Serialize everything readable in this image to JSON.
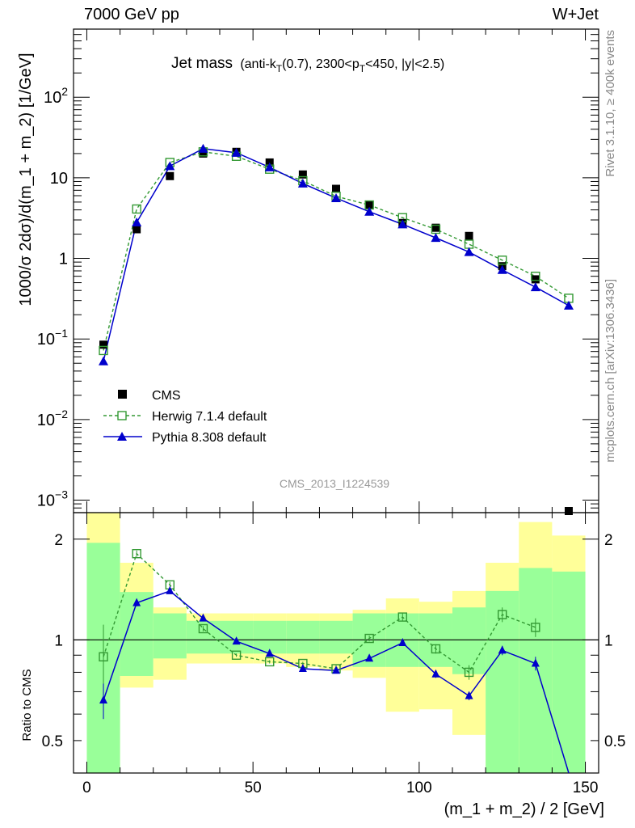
{
  "header": {
    "left": "7000 GeV pp",
    "right": "W+Jet"
  },
  "side_labels": {
    "rivet": "Rivet 3.1.10, ≥ 400k events",
    "mcplots": "mcplots.cern.ch [arXiv:1306.3436]"
  },
  "plot_title": {
    "main": "Jet mass",
    "cuts_a": "(anti-k",
    "cuts_a_sub": "T",
    "cuts_b": "(0.7), 2300<p",
    "cuts_b_sub": "T",
    "cuts_c": "<450, |y|<2.5)"
  },
  "watermark": "CMS_2013_I1224539",
  "top_panel": {
    "ylabel": "1000/σ 2dσ)/d(m_1 + m_2) [1/GeV]",
    "y_scale": "log",
    "ylim": [
      0.0007,
      700
    ],
    "y_ticks": [
      {
        "value": 100,
        "base": "10",
        "exp": "2"
      },
      {
        "value": 10,
        "base": "10",
        "exp": ""
      },
      {
        "value": 1,
        "base": "1",
        "exp": ""
      },
      {
        "value": 0.1,
        "base": "10",
        "exp": "−1"
      },
      {
        "value": 0.01,
        "base": "10",
        "exp": "−2"
      },
      {
        "value": 0.001,
        "base": "10",
        "exp": "−3"
      }
    ]
  },
  "bottom_panel": {
    "ylabel": "Ratio to CMS",
    "y_scale": "log",
    "ylim": [
      0.4,
      2.4
    ],
    "y_ticks": [
      {
        "value": 2,
        "label": "2"
      },
      {
        "value": 1,
        "label": "1"
      },
      {
        "value": 0.5,
        "label": "0.5"
      }
    ],
    "reference_line": 1
  },
  "x_axis": {
    "xlabel": "(m_1 + m_2) / 2 [GeV]",
    "xlim": [
      -4,
      154
    ],
    "ticks": [
      0,
      50,
      100,
      150
    ]
  },
  "legend": [
    {
      "label": "CMS",
      "marker": "square-filled",
      "color": "#000000"
    },
    {
      "label": "Herwig 7.1.4 default",
      "marker": "square-open",
      "color": "#339933"
    },
    {
      "label": "Pythia 8.308 default",
      "marker": "triangle",
      "color": "#0000cc"
    }
  ],
  "colors": {
    "band_inner": "#99ff99",
    "band_outer": "#ffff99",
    "cms": "#000000",
    "herwig": "#339933",
    "pythia": "#0000cc"
  },
  "chart_data": {
    "type": "scatter",
    "bins": [
      [
        0,
        10
      ],
      [
        10,
        20
      ],
      [
        20,
        30
      ],
      [
        30,
        40
      ],
      [
        40,
        50
      ],
      [
        50,
        60
      ],
      [
        60,
        70
      ],
      [
        70,
        80
      ],
      [
        80,
        90
      ],
      [
        90,
        100
      ],
      [
        100,
        110
      ],
      [
        110,
        120
      ],
      [
        120,
        130
      ],
      [
        130,
        140
      ],
      [
        140,
        150
      ]
    ],
    "x": [
      5,
      15,
      25,
      35,
      45,
      55,
      65,
      75,
      85,
      95,
      105,
      115,
      125,
      135,
      145
    ],
    "series": [
      {
        "name": "CMS",
        "values": [
          0.085,
          2.3,
          10.5,
          20,
          21,
          15.5,
          11,
          7.3,
          4.6,
          2.75,
          2.4,
          1.9,
          0.8,
          0.55,
          0.00035
        ]
      },
      {
        "name": "Herwig 7.1.4 default",
        "values": [
          0.072,
          4.1,
          15.5,
          21,
          18.5,
          12.8,
          9.2,
          5.9,
          4.6,
          3.2,
          2.3,
          1.5,
          0.95,
          0.6,
          0.32
        ]
      },
      {
        "name": "Pythia 8.308 default",
        "values": [
          0.053,
          2.8,
          14,
          23,
          20.5,
          13.5,
          8.5,
          5.6,
          3.8,
          2.65,
          1.8,
          1.2,
          0.72,
          0.44,
          0.26
        ]
      }
    ],
    "ratio": {
      "herwig": [
        0.89,
        1.81,
        1.46,
        1.08,
        0.9,
        0.86,
        0.85,
        0.82,
        1.01,
        1.17,
        0.94,
        0.8,
        1.19,
        1.09,
        null
      ],
      "herwig_err": [
        0.22,
        0.04,
        0.03,
        0.02,
        0.01,
        0.01,
        0.01,
        0.02,
        0.02,
        0.03,
        0.03,
        0.04,
        0.06,
        0.07,
        null
      ],
      "pythia": [
        0.66,
        1.29,
        1.4,
        1.16,
        0.99,
        0.91,
        0.82,
        0.81,
        0.88,
        0.98,
        0.79,
        0.68,
        0.93,
        0.85,
        0.05
      ],
      "pythia_err": [
        0.08,
        0.03,
        0.02,
        0.02,
        0.01,
        0.01,
        0.01,
        0.01,
        0.01,
        0.02,
        0.02,
        0.02,
        0.03,
        0.04,
        null
      ],
      "band_inner": [
        [
          0.0,
          1.95
        ],
        [
          0.78,
          1.39
        ],
        [
          0.88,
          1.2
        ],
        [
          0.91,
          1.14
        ],
        [
          0.91,
          1.14
        ],
        [
          0.91,
          1.14
        ],
        [
          0.91,
          1.14
        ],
        [
          0.91,
          1.14
        ],
        [
          0.83,
          1.2
        ],
        [
          0.83,
          1.2
        ],
        [
          0.83,
          1.2
        ],
        [
          0.79,
          1.25
        ],
        [
          0.0,
          1.4
        ],
        [
          0.0,
          1.64
        ],
        [
          0.0,
          1.6
        ]
      ],
      "band_outer": [
        [
          0.0,
          2.4
        ],
        [
          0.72,
          1.7
        ],
        [
          0.76,
          1.25
        ],
        [
          0.85,
          1.2
        ],
        [
          0.85,
          1.2
        ],
        [
          0.85,
          1.2
        ],
        [
          0.83,
          1.2
        ],
        [
          0.81,
          1.2
        ],
        [
          0.77,
          1.23
        ],
        [
          0.61,
          1.33
        ],
        [
          0.62,
          1.3
        ],
        [
          0.52,
          1.4
        ],
        [
          0.0,
          1.7
        ],
        [
          0.0,
          2.25
        ],
        [
          0.47,
          2.05
        ]
      ]
    }
  }
}
